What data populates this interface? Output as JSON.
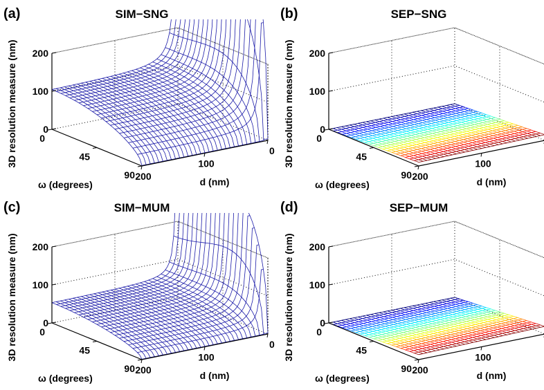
{
  "chart_data": [
    {
      "panel_label": "(a)",
      "title": "SIM−SNG",
      "type": "surface",
      "zlabel": "3D resolution measure (nm)",
      "xlabel": "d (nm)",
      "ylabel": "ω (degrees)",
      "x_ticks": [
        "0",
        "100",
        "200"
      ],
      "y_ticks": [
        "0",
        "45",
        "90"
      ],
      "z_ticks": [
        "0",
        "100",
        "200"
      ],
      "xlim": [
        0,
        200
      ],
      "ylim": [
        0,
        90
      ],
      "zlim": [
        0,
        200
      ],
      "colormap": "blue",
      "z_at_omega0": 100,
      "z_at_d200_omega90": 1
    },
    {
      "panel_label": "(b)",
      "title": "SEP−SNG",
      "type": "surface",
      "zlabel": "3D resolution measure (nm)",
      "xlabel": "d (nm)",
      "ylabel": "ω (degrees)",
      "x_ticks": [
        "0",
        "100",
        "200"
      ],
      "y_ticks": [
        "0",
        "45",
        "90"
      ],
      "z_ticks": [
        "0",
        "100",
        "200"
      ],
      "xlim": [
        0,
        200
      ],
      "ylim": [
        0,
        90
      ],
      "zlim": [
        0,
        200
      ],
      "colormap": "jet",
      "z_range": [
        0,
        15
      ]
    },
    {
      "panel_label": "(c)",
      "title": "SIM−MUM",
      "type": "surface",
      "zlabel": "3D resolution measure (nm)",
      "xlabel": "d (nm)",
      "ylabel": "ω (degrees)",
      "x_ticks": [
        "0",
        "100",
        "200"
      ],
      "y_ticks": [
        "0",
        "45",
        "90"
      ],
      "z_ticks": [
        "0",
        "100",
        "200"
      ],
      "xlim": [
        0,
        200
      ],
      "ylim": [
        0,
        90
      ],
      "zlim": [
        0,
        200
      ],
      "colormap": "blue",
      "z_at_omega0": 50,
      "z_at_d200_omega90": 1
    },
    {
      "panel_label": "(d)",
      "title": "SEP−MUM",
      "type": "surface",
      "zlabel": "3D resolution measure (nm)",
      "xlabel": "d (nm)",
      "ylabel": "ω (degrees)",
      "x_ticks": [
        "0",
        "100",
        "200"
      ],
      "y_ticks": [
        "0",
        "45",
        "90"
      ],
      "z_ticks": [
        "0",
        "100",
        "200"
      ],
      "xlim": [
        0,
        200
      ],
      "ylim": [
        0,
        90
      ],
      "zlim": [
        0,
        200
      ],
      "colormap": "jet",
      "z_range": [
        0,
        20
      ]
    }
  ]
}
